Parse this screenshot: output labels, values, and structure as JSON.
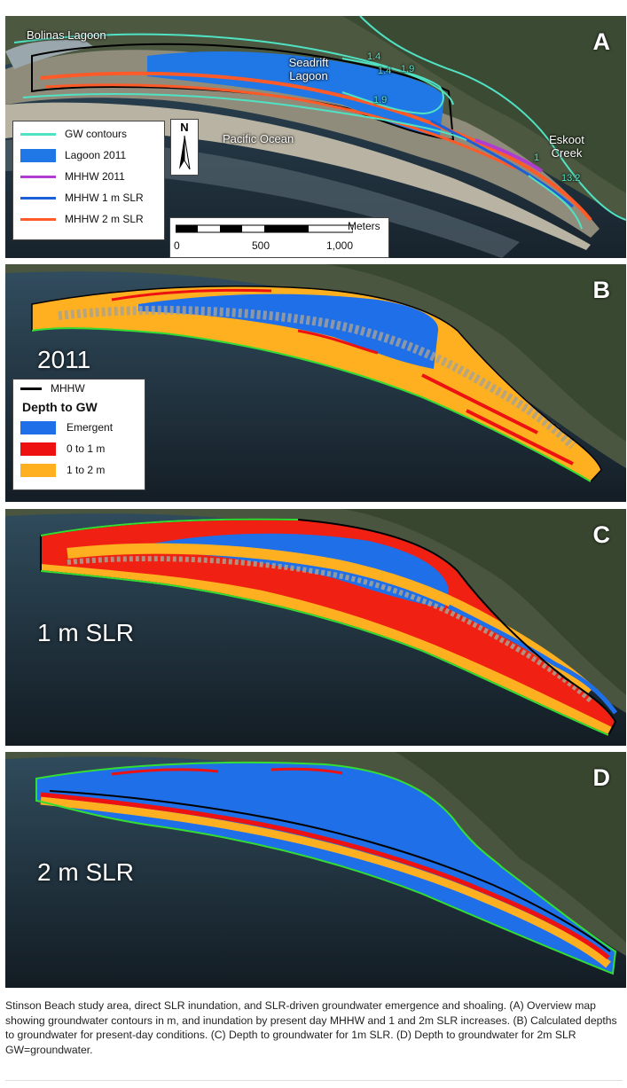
{
  "panels": {
    "a": {
      "letter": "A",
      "labels": {
        "bolinas": "Bolinas Lagoon",
        "seadrift": "Seadrift Lagoon",
        "ocean": "Pacific Ocean",
        "eskoot": "Eskoot Creek",
        "c14a": "1.4",
        "c14b": "1.4",
        "c19a": "1.9",
        "c19b": "1.9",
        "c132": "13.2",
        "c1": "1"
      },
      "legend": [
        {
          "label": "GW contours",
          "color": "#4fe3c4",
          "kind": "line"
        },
        {
          "label": "Lagoon 2011",
          "color": "#1f78e6",
          "kind": "box"
        },
        {
          "label": "MHHW 2011",
          "color": "#b03cd0",
          "kind": "line"
        },
        {
          "label": "MHHW 1 m SLR",
          "color": "#1d5fd6",
          "kind": "line"
        },
        {
          "label": "MHHW 2 m SLR",
          "color": "#ff5a28",
          "kind": "line"
        }
      ],
      "north": "N",
      "scale": {
        "unit": "Meters",
        "ticks": [
          "0",
          "500",
          "1,000"
        ]
      }
    },
    "b": {
      "letter": "B",
      "scenario": "2011",
      "legend": {
        "line_label": "MHHW",
        "title": "Depth to GW",
        "items": [
          {
            "label": "Emergent",
            "color": "#1f6fe8"
          },
          {
            "label": "0 to 1 m",
            "color": "#ee1111"
          },
          {
            "label": "1 to 2 m",
            "color": "#ffb020"
          }
        ]
      }
    },
    "c": {
      "letter": "C",
      "scenario": "1 m SLR"
    },
    "d": {
      "letter": "D",
      "scenario": "2 m SLR"
    }
  },
  "caption": "Stinson Beach study area, direct SLR inundation, and SLR-driven groundwater emergence and shoaling. (A) Overview map showing groundwater contours in m, and inundation by present day MHHW and 1 and 2m SLR increases. (B) Calculated depths to groundwater for present-day conditions. (C) Depth to groundwater for 1m SLR. (D) Depth to groundwater for 2m SLR GW=groundwater."
}
